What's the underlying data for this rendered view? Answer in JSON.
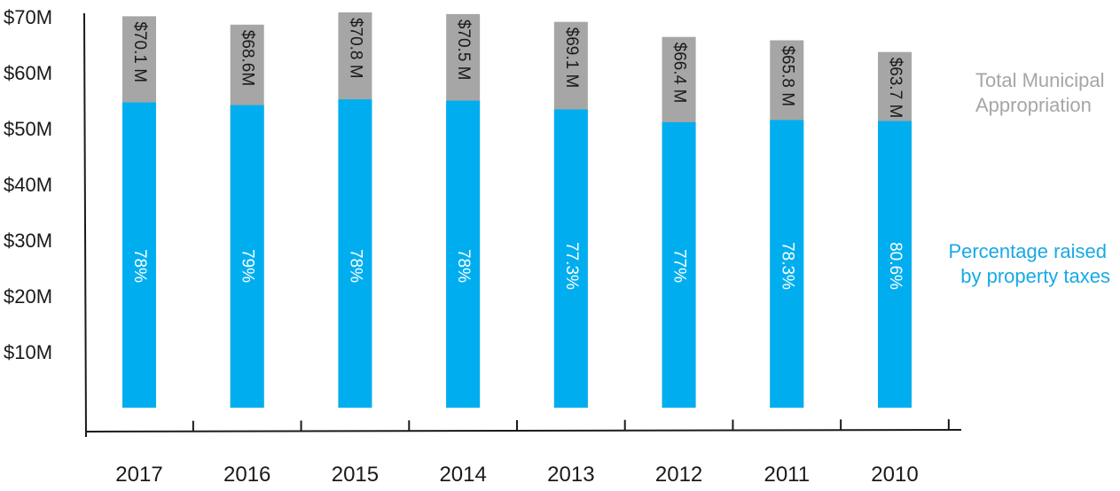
{
  "chart_data": {
    "type": "bar",
    "categories": [
      "2017",
      "2016",
      "2015",
      "2014",
      "2013",
      "2012",
      "2011",
      "2010"
    ],
    "series": [
      {
        "name": "Total Municipal Appropriation",
        "values": [
          70.1,
          68.6,
          70.8,
          70.5,
          69.1,
          66.4,
          65.8,
          63.7
        ],
        "labels": [
          "$70.1 M",
          "$68.6M",
          "$70.8 M",
          "$70.5 M",
          "$69.1 M",
          "$66.4 M",
          "$65.8 M",
          "$63.7 M"
        ]
      },
      {
        "name": "Percentage raised by property taxes",
        "values": [
          78,
          79,
          78,
          78,
          77.3,
          77,
          78.3,
          80.6
        ],
        "labels": [
          "78%",
          "79%",
          "78%",
          "78%",
          "77.3%",
          "77%",
          "78.3%",
          "80.6%"
        ]
      }
    ],
    "y_ticks": [
      "$10M",
      "$20M",
      "$30M",
      "$40M",
      "$50M",
      "$60M",
      "$70M"
    ],
    "ylim": [
      0,
      70
    ],
    "colors": {
      "total": "#a6a6a6",
      "property": "#00aeef",
      "legend_total": "#a6a6a6",
      "legend_property": "#17a9e6"
    },
    "legend": {
      "position": "right",
      "total_lines": [
        "Total Municipal",
        "Appropriation"
      ],
      "property_lines": [
        "Percentage raised",
        "by property taxes"
      ]
    },
    "grid": false
  }
}
